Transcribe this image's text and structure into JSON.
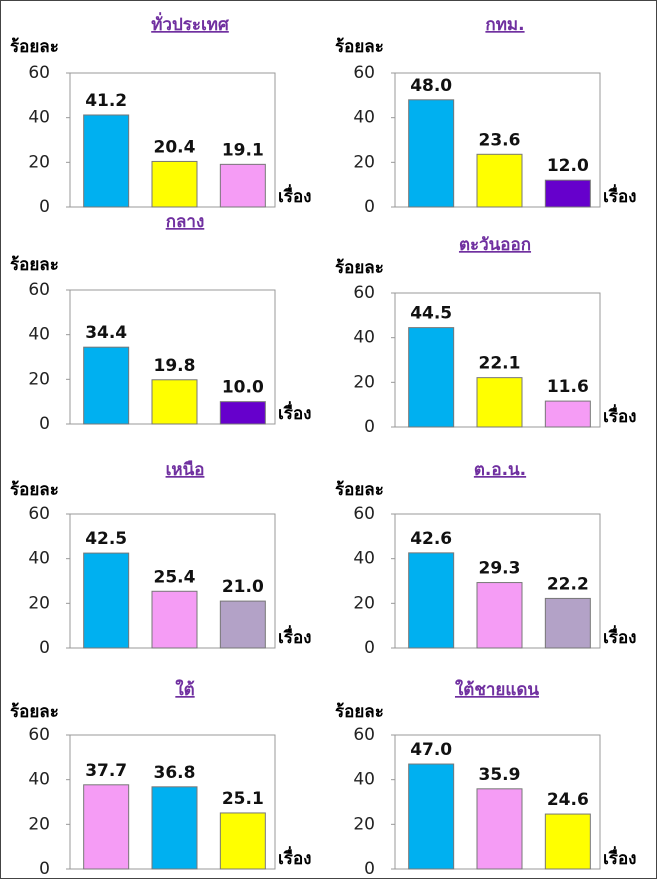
{
  "chart_data": [
    {
      "type": "bar",
      "title": "ทั่วประเทศ",
      "y_label": "ร้อยละ",
      "x_label": "เรื่อง",
      "values": [
        41.2,
        20.4,
        19.1
      ],
      "value_labels": [
        "41.2",
        "20.4",
        "19.1"
      ],
      "colors": [
        "#00b0f0",
        "#ffff00",
        "#f59cf5"
      ],
      "ylim": [
        0,
        60
      ],
      "yticks": [
        0,
        20,
        40,
        60
      ]
    },
    {
      "type": "bar",
      "title": "กทม.",
      "y_label": "ร้อยละ",
      "x_label": "เรื่อง",
      "values": [
        48.0,
        23.6,
        12.0
      ],
      "value_labels": [
        "48.0",
        "23.6",
        "12.0"
      ],
      "colors": [
        "#00b0f0",
        "#ffff00",
        "#6600cc"
      ],
      "ylim": [
        0,
        60
      ],
      "yticks": [
        0,
        20,
        40,
        60
      ]
    },
    {
      "type": "bar",
      "title": "กลาง",
      "y_label": "ร้อยละ",
      "x_label": "เรื่อง",
      "values": [
        34.4,
        19.8,
        10.0
      ],
      "value_labels": [
        "34.4",
        "19.8",
        "10.0"
      ],
      "colors": [
        "#00b0f0",
        "#ffff00",
        "#6600cc"
      ],
      "ylim": [
        0,
        60
      ],
      "yticks": [
        0,
        20,
        40,
        60
      ]
    },
    {
      "type": "bar",
      "title": "ตะวันออก",
      "y_label": "ร้อยละ",
      "x_label": "เรื่อง",
      "values": [
        44.5,
        22.1,
        11.6
      ],
      "value_labels": [
        "44.5",
        "22.1",
        "11.6"
      ],
      "colors": [
        "#00b0f0",
        "#ffff00",
        "#f59cf5"
      ],
      "ylim": [
        0,
        60
      ],
      "yticks": [
        0,
        20,
        40,
        60
      ]
    },
    {
      "type": "bar",
      "title": "เหนือ",
      "y_label": "ร้อยละ",
      "x_label": "เรื่อง",
      "values": [
        42.5,
        25.4,
        21.0
      ],
      "value_labels": [
        "42.5",
        "25.4",
        "21.0"
      ],
      "colors": [
        "#00b0f0",
        "#f59cf5",
        "#b3a2c7"
      ],
      "ylim": [
        0,
        60
      ],
      "yticks": [
        0,
        20,
        40,
        60
      ]
    },
    {
      "type": "bar",
      "title": "ต.อ.น.",
      "y_label": "ร้อยละ",
      "x_label": "เรื่อง",
      "values": [
        42.6,
        29.3,
        22.2
      ],
      "value_labels": [
        "42.6",
        "29.3",
        "22.2"
      ],
      "colors": [
        "#00b0f0",
        "#f59cf5",
        "#b3a2c7"
      ],
      "ylim": [
        0,
        60
      ],
      "yticks": [
        0,
        20,
        40,
        60
      ]
    },
    {
      "type": "bar",
      "title": "ใต้",
      "y_label": "ร้อยละ",
      "x_label": "เรื่อง",
      "values": [
        37.7,
        36.8,
        25.1
      ],
      "value_labels": [
        "37.7",
        "36.8",
        "25.1"
      ],
      "colors": [
        "#f59cf5",
        "#00b0f0",
        "#ffff00"
      ],
      "ylim": [
        0,
        60
      ],
      "yticks": [
        0,
        20,
        40,
        60
      ]
    },
    {
      "type": "bar",
      "title": "ใต้ชายแดน",
      "y_label": "ร้อยละ",
      "x_label": "เรื่อง",
      "values": [
        47.0,
        35.9,
        24.6
      ],
      "value_labels": [
        "47.0",
        "35.9",
        "24.6"
      ],
      "colors": [
        "#00b0f0",
        "#f59cf5",
        "#ffff00"
      ],
      "ylim": [
        0,
        60
      ],
      "yticks": [
        0,
        20,
        40,
        60
      ]
    }
  ]
}
